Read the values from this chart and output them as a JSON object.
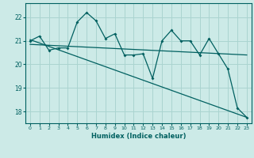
{
  "title": "",
  "xlabel": "Humidex (Indice chaleur)",
  "xlim": [
    -0.5,
    23.5
  ],
  "ylim": [
    17.5,
    22.6
  ],
  "yticks": [
    18,
    19,
    20,
    21,
    22
  ],
  "xticks": [
    0,
    1,
    2,
    3,
    4,
    5,
    6,
    7,
    8,
    9,
    10,
    11,
    12,
    13,
    14,
    15,
    16,
    17,
    18,
    19,
    20,
    21,
    22,
    23
  ],
  "bg_color": "#cceae7",
  "grid_color": "#aad4d0",
  "line_color": "#006060",
  "line1_x": [
    0,
    1,
    2,
    3,
    4,
    5,
    6,
    7,
    8,
    9,
    10,
    11,
    12,
    13,
    14,
    15,
    16,
    17,
    18,
    19,
    20,
    21,
    22,
    23
  ],
  "line1_y": [
    21.0,
    21.2,
    20.6,
    20.7,
    20.7,
    21.8,
    22.2,
    21.85,
    21.1,
    21.3,
    20.4,
    20.4,
    20.45,
    19.4,
    21.0,
    21.45,
    21.0,
    21.0,
    20.4,
    21.1,
    20.45,
    19.8,
    18.15,
    17.75
  ],
  "line2_x": [
    0,
    23
  ],
  "line2_y": [
    21.05,
    17.75
  ],
  "line3_x": [
    0,
    23
  ],
  "line3_y": [
    20.85,
    20.4
  ]
}
